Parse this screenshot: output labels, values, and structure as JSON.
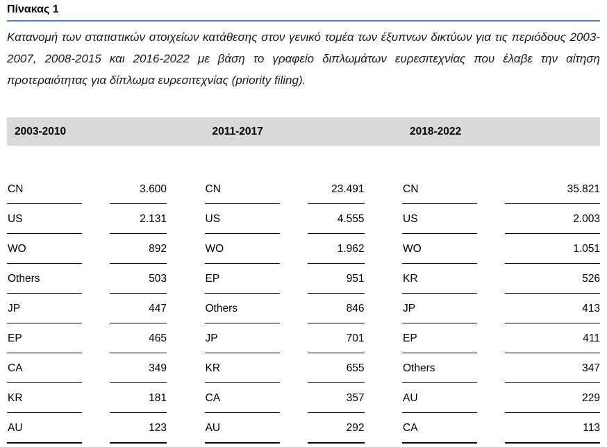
{
  "page": {
    "title": "Πίνακας 1",
    "caption": "Κατανομή των στατιστικών στοιχείων κατάθεσης στον γενικό τομέα των έξυπνων δικτύων για τις περιόδους 2003-2007, 2008-2015 και 2016-2022 με βάση το γραφείο διπλωμάτων ευρεσιτεχνίας που έλαβε την αίτηση προτεραιότητας για δίπλωμα ευρεσιτεχνίας (priority filing)."
  },
  "colors": {
    "accent_rule": "#4F81BD",
    "header_band_bg": "#D9D9D9",
    "text": "#000000"
  },
  "chart_data": {
    "type": "table",
    "title": "Πίνακας 1",
    "columns": [
      "patent_office",
      "priority_filings"
    ],
    "groups": [
      {
        "period": "2003-2010",
        "rows": [
          [
            "CN",
            "3.600"
          ],
          [
            "US",
            "2.131"
          ],
          [
            "WO",
            "892"
          ],
          [
            "Others",
            "503"
          ],
          [
            "JP",
            "447"
          ],
          [
            "EP",
            "465"
          ],
          [
            "CA",
            "349"
          ],
          [
            "KR",
            "181"
          ],
          [
            "AU",
            "123"
          ]
        ]
      },
      {
        "period": "2011-2017",
        "rows": [
          [
            "CN",
            "23.491"
          ],
          [
            "US",
            "4.555"
          ],
          [
            "WO",
            "1.962"
          ],
          [
            "EP",
            "951"
          ],
          [
            "Others",
            "846"
          ],
          [
            "JP",
            "701"
          ],
          [
            "KR",
            "655"
          ],
          [
            "CA",
            "357"
          ],
          [
            "AU",
            "292"
          ]
        ]
      },
      {
        "period": "2018-2022",
        "rows": [
          [
            "CN",
            "35.821"
          ],
          [
            "US",
            "2.003"
          ],
          [
            "WO",
            "1.051"
          ],
          [
            "KR",
            "526"
          ],
          [
            "JP",
            "413"
          ],
          [
            "EP",
            "411"
          ],
          [
            "Others",
            "347"
          ],
          [
            "AU",
            "229"
          ],
          [
            "CA",
            "113"
          ]
        ]
      }
    ]
  }
}
